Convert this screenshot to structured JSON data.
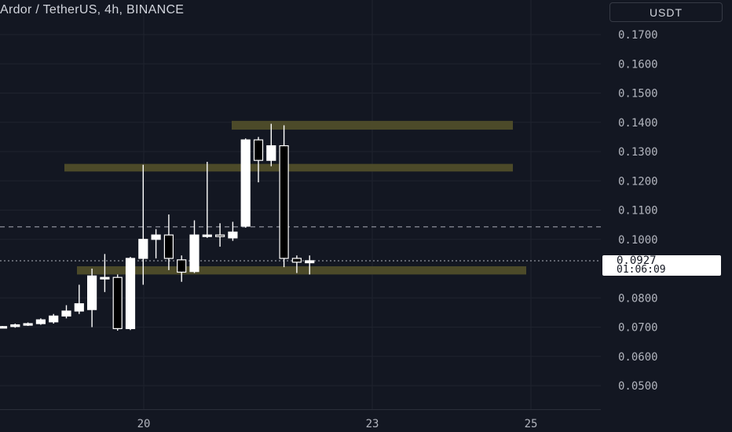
{
  "header": {
    "title": "Ardor / TetherUS, 4h, BINANCE",
    "currency_button": "USDT"
  },
  "last_price": {
    "value": "0.0927",
    "countdown": "01:06:09"
  },
  "colors": {
    "background": "#131722",
    "candle_body": "#ffffff",
    "candle_border": "#000000",
    "zone": "#4f4d2a",
    "reference_line": "#787b86",
    "grid": "#1f232e",
    "text": "#b2b5be"
  },
  "chart_data": {
    "type": "candlestick",
    "title": "Ardor / TetherUS, 4h, BINANCE",
    "ylim": [
      0.045,
      0.176
    ],
    "y_ticks": [
      "0.1700",
      "0.1600",
      "0.1500",
      "0.1400",
      "0.1300",
      "0.1200",
      "0.1100",
      "0.1000",
      "0.0800",
      "0.0700",
      "0.0600",
      "0.0500"
    ],
    "x_ticks": [
      "20",
      "23",
      "25"
    ],
    "grid": true,
    "last_price": 0.0927,
    "reference_price": 0.1043,
    "zones": [
      {
        "low": 0.1375,
        "high": 0.1405
      },
      {
        "low": 0.1232,
        "high": 0.1258
      },
      {
        "low": 0.088,
        "high": 0.0908
      }
    ],
    "candles": [
      {
        "open": 0.07,
        "high": 0.0704,
        "low": 0.0696,
        "close": 0.0702
      },
      {
        "open": 0.0702,
        "high": 0.0712,
        "low": 0.0698,
        "close": 0.0708
      },
      {
        "open": 0.0708,
        "high": 0.0716,
        "low": 0.0704,
        "close": 0.0712
      },
      {
        "open": 0.0712,
        "high": 0.073,
        "low": 0.0708,
        "close": 0.0725
      },
      {
        "open": 0.0718,
        "high": 0.0745,
        "low": 0.0712,
        "close": 0.0738
      },
      {
        "open": 0.0738,
        "high": 0.0775,
        "low": 0.073,
        "close": 0.0755
      },
      {
        "open": 0.0755,
        "high": 0.0845,
        "low": 0.0745,
        "close": 0.078
      },
      {
        "open": 0.076,
        "high": 0.09,
        "low": 0.07,
        "close": 0.0875
      },
      {
        "open": 0.0865,
        "high": 0.095,
        "low": 0.082,
        "close": 0.087
      },
      {
        "open": 0.087,
        "high": 0.088,
        "low": 0.0688,
        "close": 0.0695
      },
      {
        "open": 0.0695,
        "high": 0.094,
        "low": 0.069,
        "close": 0.0935
      },
      {
        "open": 0.0935,
        "high": 0.1255,
        "low": 0.0845,
        "close": 0.1
      },
      {
        "open": 0.1,
        "high": 0.1035,
        "low": 0.0935,
        "close": 0.1015
      },
      {
        "open": 0.1015,
        "high": 0.1085,
        "low": 0.0895,
        "close": 0.0935
      },
      {
        "open": 0.093,
        "high": 0.0945,
        "low": 0.0855,
        "close": 0.0888
      },
      {
        "open": 0.089,
        "high": 0.1065,
        "low": 0.0885,
        "close": 0.1015
      },
      {
        "open": 0.1015,
        "high": 0.1265,
        "low": 0.1005,
        "close": 0.1015
      },
      {
        "open": 0.1015,
        "high": 0.1055,
        "low": 0.0975,
        "close": 0.101
      },
      {
        "open": 0.1005,
        "high": 0.106,
        "low": 0.0995,
        "close": 0.1025
      },
      {
        "open": 0.1045,
        "high": 0.1345,
        "low": 0.104,
        "close": 0.134
      },
      {
        "open": 0.134,
        "high": 0.135,
        "low": 0.1195,
        "close": 0.127
      },
      {
        "open": 0.127,
        "high": 0.1395,
        "low": 0.125,
        "close": 0.132
      },
      {
        "open": 0.132,
        "high": 0.139,
        "low": 0.0905,
        "close": 0.0935
      },
      {
        "open": 0.0935,
        "high": 0.0945,
        "low": 0.0885,
        "close": 0.0922
      },
      {
        "open": 0.092,
        "high": 0.0945,
        "low": 0.088,
        "close": 0.0927
      }
    ]
  }
}
